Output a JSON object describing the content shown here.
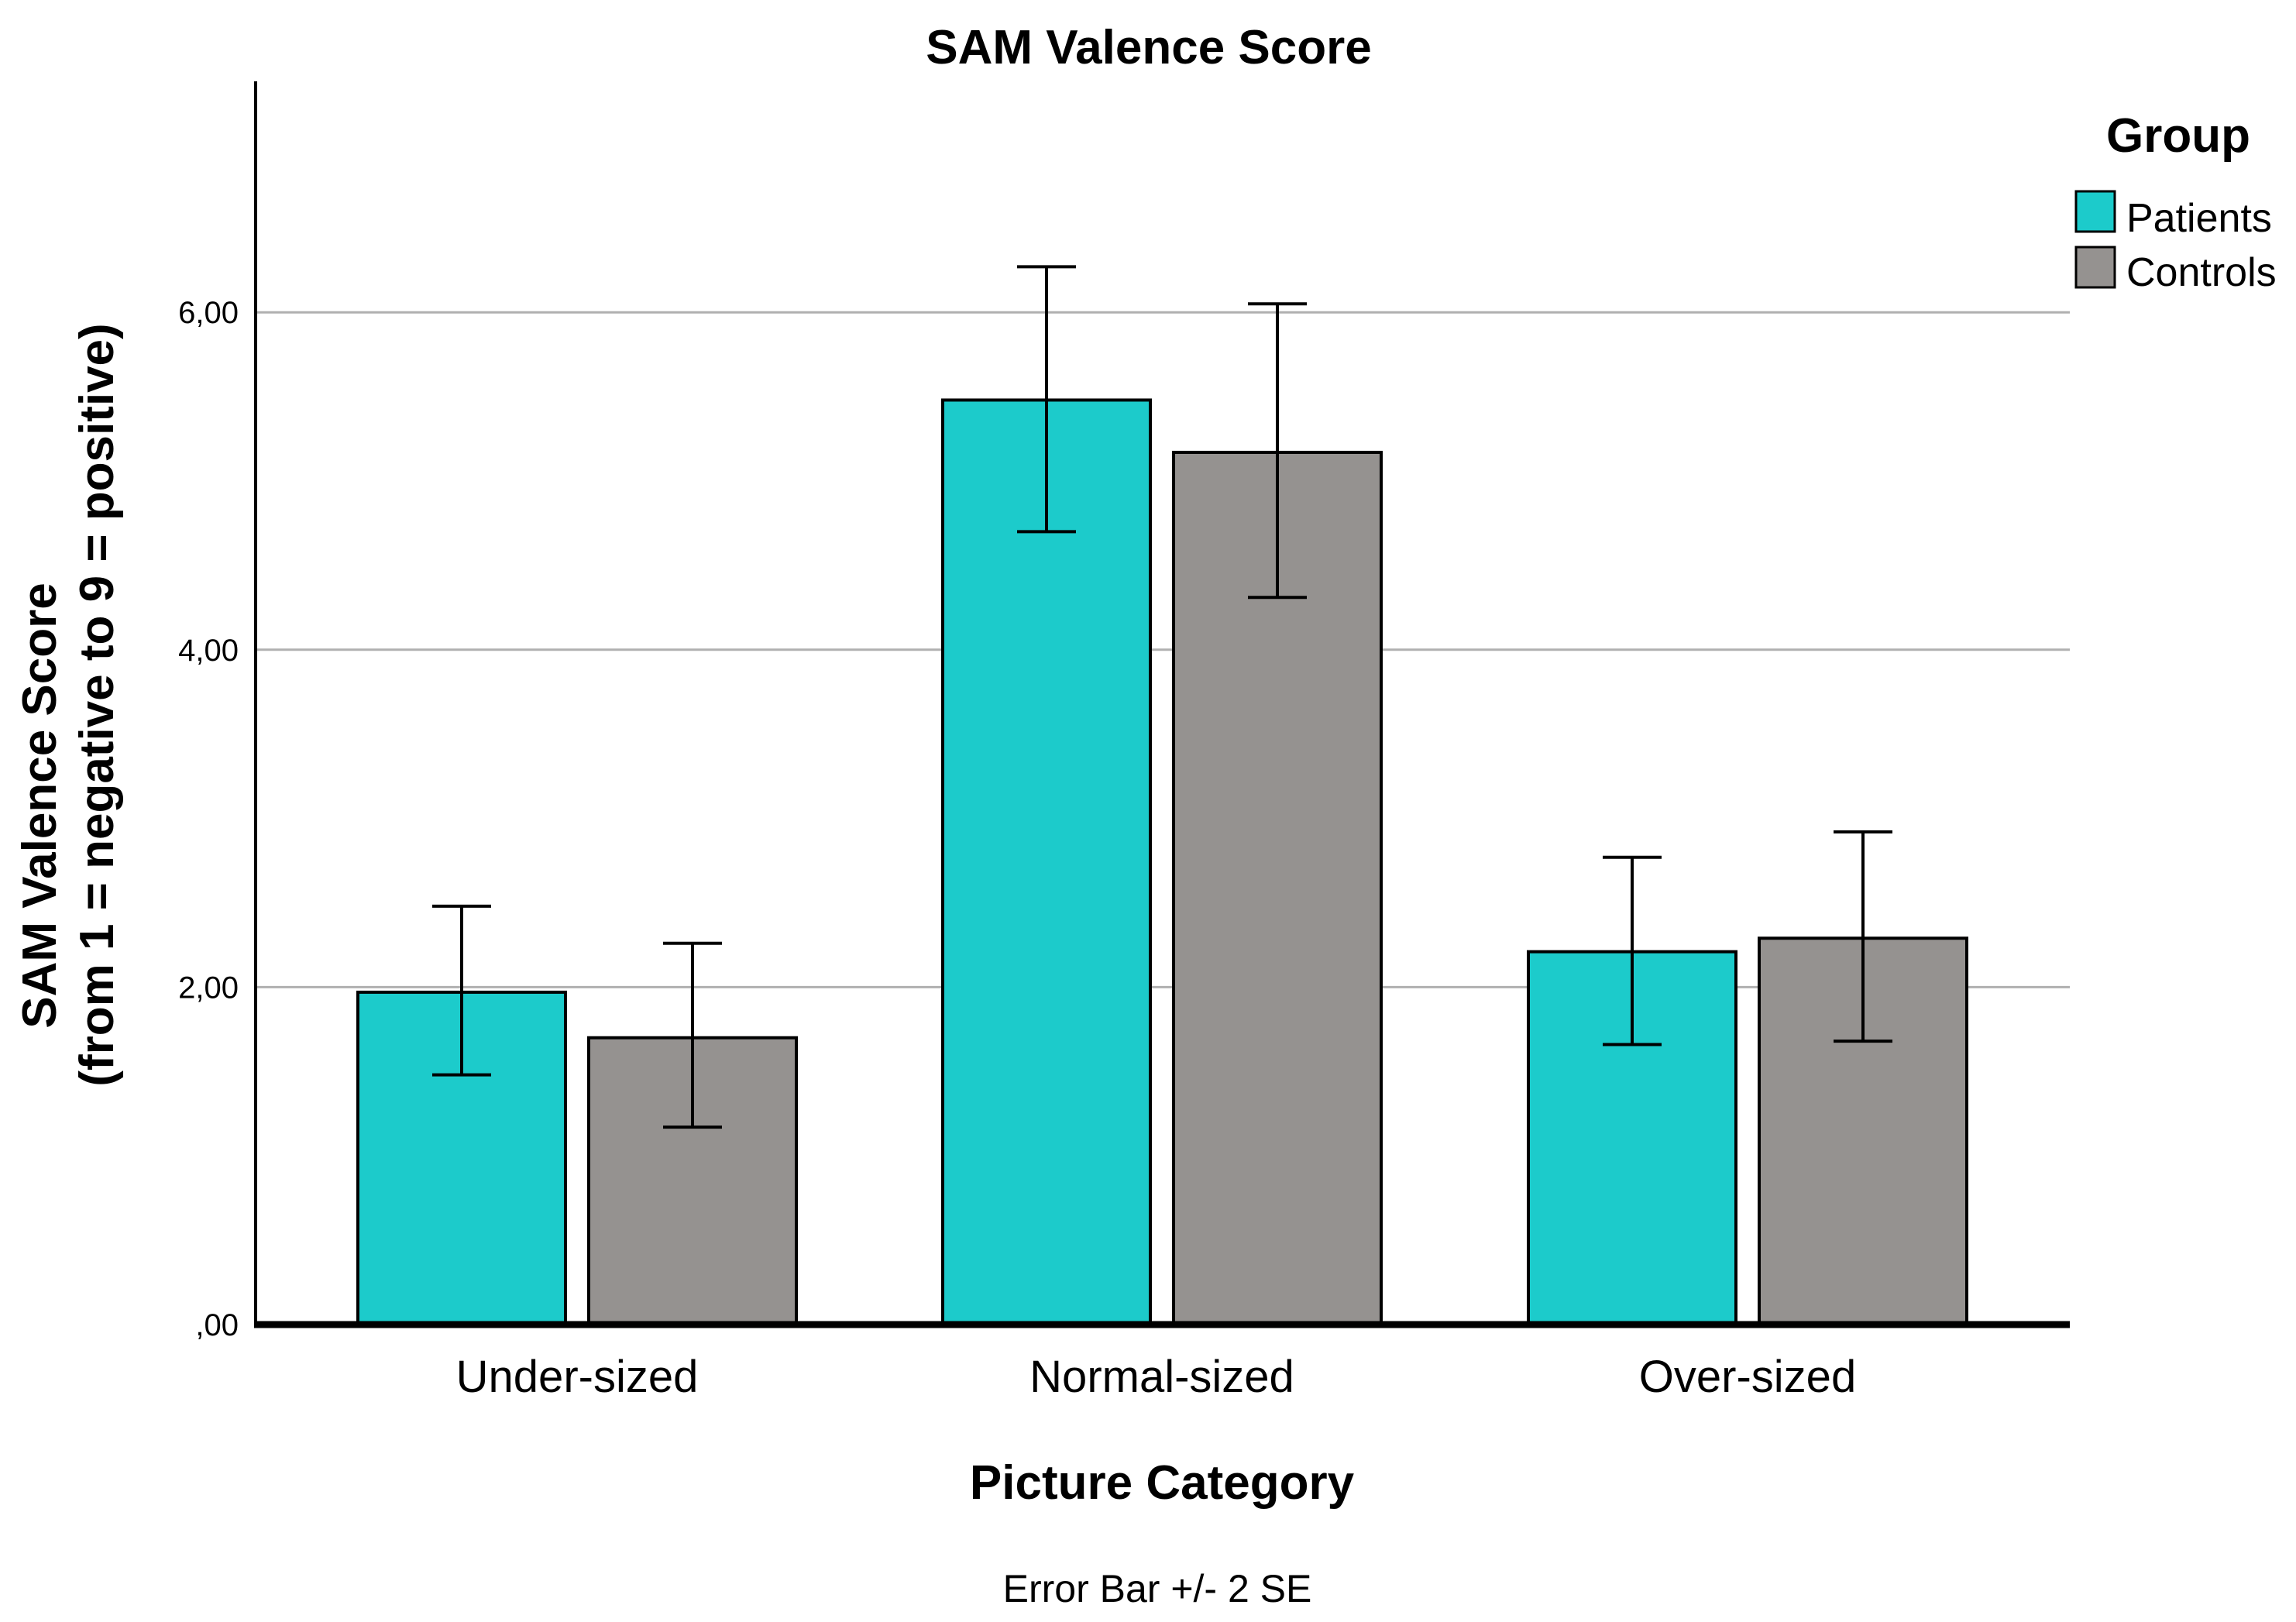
{
  "chart_data": {
    "type": "bar",
    "title": "SAM Valence Score",
    "xlabel": "Picture Category",
    "ylabel": [
      "SAM Valence Score",
      "(from 1 = negative to 9 = positive)"
    ],
    "footnote": "Error Bar +/- 2 SE",
    "categories": [
      "Under-sized",
      "Normal-sized",
      "Over-sized"
    ],
    "ylim": [
      0,
      7.4
    ],
    "yticks": [
      0,
      2,
      4,
      6
    ],
    "ytick_labels": [
      ",00",
      "2,00",
      "4,00",
      "6,00"
    ],
    "grid": true,
    "legend": {
      "title": "Group",
      "position": "top-right"
    },
    "series": [
      {
        "name": "Patients",
        "color": "#1ccbcb",
        "values": [
          1.97,
          5.48,
          2.21
        ],
        "err_low": [
          1.48,
          4.7,
          1.66
        ],
        "err_high": [
          2.48,
          6.27,
          2.77
        ]
      },
      {
        "name": "Controls",
        "color": "#959290",
        "values": [
          1.7,
          5.17,
          2.29
        ],
        "err_low": [
          1.17,
          4.31,
          1.68
        ],
        "err_high": [
          2.26,
          6.05,
          2.92
        ]
      }
    ]
  }
}
